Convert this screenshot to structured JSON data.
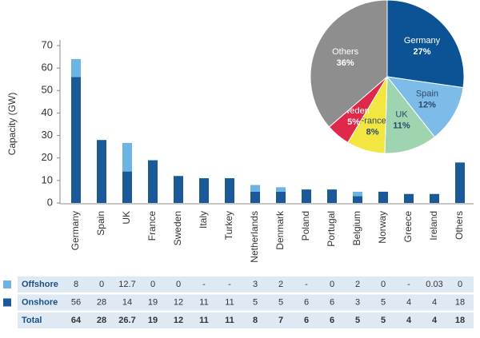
{
  "chart_data": [
    {
      "type": "bar",
      "stacked": true,
      "y_label": "Capacity (GW)",
      "categories": [
        "Germany",
        "Spain",
        "UK",
        "France",
        "Sweden",
        "Italy",
        "Turkey",
        "Netherlands",
        "Denmark",
        "Poland",
        "Portugal",
        "Belgium",
        "Norway",
        "Greece",
        "Ireland",
        "Others"
      ],
      "series": [
        {
          "name": "Onshore",
          "color": "#1b5a98",
          "values": [
            56,
            28,
            14,
            19,
            12,
            11,
            11,
            5,
            5,
            6,
            6,
            3,
            5,
            4,
            4,
            18
          ]
        },
        {
          "name": "Offshore",
          "color": "#6cb4e4",
          "values": [
            8,
            0,
            12.7,
            0,
            0,
            null,
            null,
            3,
            2,
            null,
            0,
            2,
            0,
            null,
            0.03,
            0
          ]
        }
      ],
      "ylim": [
        0,
        70
      ],
      "yticks": [
        0,
        10,
        20,
        30,
        40,
        50,
        60,
        70
      ],
      "grid": false
    },
    {
      "type": "pie",
      "categories": [
        "Germany",
        "Spain",
        "UK",
        "France",
        "Sweden",
        "Others"
      ],
      "values": [
        27,
        12,
        11,
        8,
        5,
        36
      ],
      "value_labels": [
        "27%",
        "12%",
        "11%",
        "8%",
        "5%",
        "36%"
      ],
      "colors": [
        "#0b5394",
        "#7dbbe8",
        "#9fd4b0",
        "#f3e640",
        "#e0294a",
        "#8e8e8e"
      ]
    }
  ],
  "table": {
    "rows": [
      {
        "label": "Offshore",
        "color": "#6cb4e4",
        "cells": [
          "8",
          "0",
          "12.7",
          "0",
          "0",
          "-",
          "-",
          "3",
          "2",
          "-",
          "0",
          "2",
          "0",
          "-",
          "0.03",
          "0"
        ]
      },
      {
        "label": "Onshore",
        "color": "#1b5a98",
        "cells": [
          "56",
          "28",
          "14",
          "19",
          "12",
          "11",
          "11",
          "5",
          "5",
          "6",
          "6",
          "3",
          "5",
          "4",
          "4",
          "18"
        ]
      },
      {
        "label": "Total",
        "cells": [
          "64",
          "28",
          "26.7",
          "19",
          "12",
          "11",
          "11",
          "8",
          "7",
          "6",
          "6",
          "5",
          "5",
          "4",
          "4",
          "18"
        ]
      }
    ]
  }
}
